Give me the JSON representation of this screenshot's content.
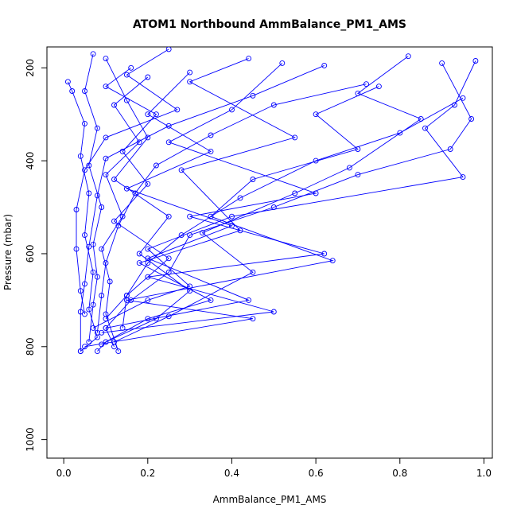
{
  "chart_data": {
    "type": "line",
    "title": "ATOM1 Northbound AmmBalance_PM1_AMS",
    "xlabel": "AmmBalance_PM1_AMS",
    "ylabel": "Pressure (mbar)",
    "xlim": [
      -0.04,
      1.02
    ],
    "ylim": [
      1040,
      155
    ],
    "y_reversed": true,
    "grid": false,
    "x_ticks": [
      0.0,
      0.2,
      0.4,
      0.6,
      0.8,
      1.0
    ],
    "x_tick_labels": [
      "0.0",
      "0.2",
      "0.4",
      "0.6",
      "0.8",
      "1.0"
    ],
    "y_ticks": [
      200,
      400,
      600,
      800,
      1000
    ],
    "y_tick_labels": [
      "200",
      "400",
      "600",
      "800",
      "1000"
    ],
    "series_color": "#0000ff",
    "marker": "open-circle",
    "series": [
      {
        "points": [
          [
            0.01,
            230
          ],
          [
            0.02,
            250
          ],
          [
            0.05,
            320
          ],
          [
            0.04,
            390
          ],
          [
            0.06,
            470
          ],
          [
            0.05,
            560
          ],
          [
            0.07,
            640
          ],
          [
            0.06,
            720
          ],
          [
            0.08,
            780
          ],
          [
            0.04,
            810
          ]
        ]
      },
      {
        "points": [
          [
            0.1,
            180
          ],
          [
            0.15,
            270
          ],
          [
            0.2,
            350
          ],
          [
            0.12,
            440
          ],
          [
            0.25,
            520
          ],
          [
            0.18,
            600
          ],
          [
            0.3,
            680
          ],
          [
            0.22,
            740
          ],
          [
            0.1,
            790
          ],
          [
            0.08,
            810
          ]
        ]
      },
      {
        "points": [
          [
            0.3,
            210
          ],
          [
            0.2,
            300
          ],
          [
            0.35,
            380
          ],
          [
            0.15,
            460
          ],
          [
            0.4,
            540
          ],
          [
            0.2,
            610
          ],
          [
            0.44,
            700
          ],
          [
            0.1,
            760
          ],
          [
            0.12,
            800
          ]
        ]
      },
      {
        "points": [
          [
            0.52,
            190
          ],
          [
            0.4,
            290
          ],
          [
            0.25,
            360
          ],
          [
            0.6,
            470
          ],
          [
            0.3,
            520
          ],
          [
            0.62,
            600
          ],
          [
            0.2,
            650
          ],
          [
            0.5,
            725
          ],
          [
            0.09,
            770
          ]
        ]
      },
      {
        "points": [
          [
            0.75,
            240
          ],
          [
            0.6,
            300
          ],
          [
            0.7,
            375
          ],
          [
            0.45,
            440
          ],
          [
            0.35,
            520
          ],
          [
            0.64,
            615
          ],
          [
            0.15,
            700
          ],
          [
            0.45,
            740
          ],
          [
            0.05,
            800
          ]
        ]
      },
      {
        "points": [
          [
            0.9,
            190
          ],
          [
            0.97,
            310
          ],
          [
            0.92,
            375
          ],
          [
            0.7,
            430
          ],
          [
            0.5,
            500
          ],
          [
            0.3,
            560
          ],
          [
            0.25,
            640
          ],
          [
            0.16,
            700
          ],
          [
            0.1,
            760
          ]
        ]
      },
      {
        "points": [
          [
            0.98,
            185
          ],
          [
            0.93,
            280
          ],
          [
            0.86,
            330
          ],
          [
            0.95,
            435
          ],
          [
            0.4,
            520
          ],
          [
            0.2,
            590
          ],
          [
            0.3,
            670
          ],
          [
            0.2,
            700
          ],
          [
            0.07,
            760
          ]
        ]
      },
      {
        "points": [
          [
            0.82,
            175
          ],
          [
            0.7,
            255
          ],
          [
            0.85,
            310
          ],
          [
            0.68,
            415
          ],
          [
            0.55,
            470
          ],
          [
            0.33,
            555
          ],
          [
            0.45,
            640
          ],
          [
            0.25,
            735
          ],
          [
            0.12,
            790
          ]
        ]
      },
      {
        "points": [
          [
            0.62,
            195
          ],
          [
            0.45,
            260
          ],
          [
            0.25,
            325
          ],
          [
            0.1,
            395
          ],
          [
            0.08,
            475
          ],
          [
            0.06,
            585
          ],
          [
            0.05,
            665
          ],
          [
            0.04,
            725
          ],
          [
            0.04,
            810
          ]
        ]
      },
      {
        "points": [
          [
            0.2,
            220
          ],
          [
            0.12,
            280
          ],
          [
            0.18,
            360
          ],
          [
            0.1,
            430
          ],
          [
            0.14,
            520
          ],
          [
            0.09,
            590
          ],
          [
            0.11,
            660
          ],
          [
            0.1,
            730
          ],
          [
            0.13,
            810
          ]
        ]
      },
      {
        "points": [
          [
            0.07,
            170
          ],
          [
            0.05,
            250
          ],
          [
            0.08,
            330
          ],
          [
            0.06,
            410
          ],
          [
            0.09,
            500
          ],
          [
            0.07,
            580
          ],
          [
            0.08,
            650
          ],
          [
            0.07,
            710
          ],
          [
            0.06,
            790
          ]
        ]
      },
      {
        "points": [
          [
            0.16,
            200
          ],
          [
            0.1,
            240
          ],
          [
            0.22,
            300
          ],
          [
            0.14,
            380
          ],
          [
            0.2,
            450
          ],
          [
            0.12,
            530
          ],
          [
            0.25,
            610
          ],
          [
            0.15,
            690
          ],
          [
            0.14,
            760
          ]
        ]
      },
      {
        "points": [
          [
            0.44,
            180
          ],
          [
            0.3,
            230
          ],
          [
            0.55,
            350
          ],
          [
            0.28,
            420
          ],
          [
            0.42,
            550
          ],
          [
            0.18,
            620
          ],
          [
            0.35,
            700
          ],
          [
            0.2,
            740
          ],
          [
            0.09,
            795
          ]
        ]
      },
      {
        "points": [
          [
            0.72,
            235
          ],
          [
            0.5,
            280
          ],
          [
            0.35,
            345
          ],
          [
            0.22,
            410
          ],
          [
            0.17,
            470
          ],
          [
            0.13,
            540
          ],
          [
            0.1,
            620
          ],
          [
            0.09,
            690
          ],
          [
            0.08,
            770
          ]
        ]
      },
      {
        "points": [
          [
            0.95,
            265
          ],
          [
            0.8,
            340
          ],
          [
            0.6,
            400
          ],
          [
            0.42,
            480
          ],
          [
            0.28,
            560
          ],
          [
            0.2,
            620
          ],
          [
            0.15,
            690
          ],
          [
            0.1,
            740
          ]
        ]
      },
      {
        "points": [
          [
            0.25,
            160
          ],
          [
            0.15,
            215
          ],
          [
            0.27,
            290
          ],
          [
            0.1,
            350
          ],
          [
            0.05,
            420
          ],
          [
            0.03,
            505
          ],
          [
            0.03,
            590
          ],
          [
            0.04,
            680
          ],
          [
            0.05,
            730
          ]
        ]
      }
    ]
  }
}
